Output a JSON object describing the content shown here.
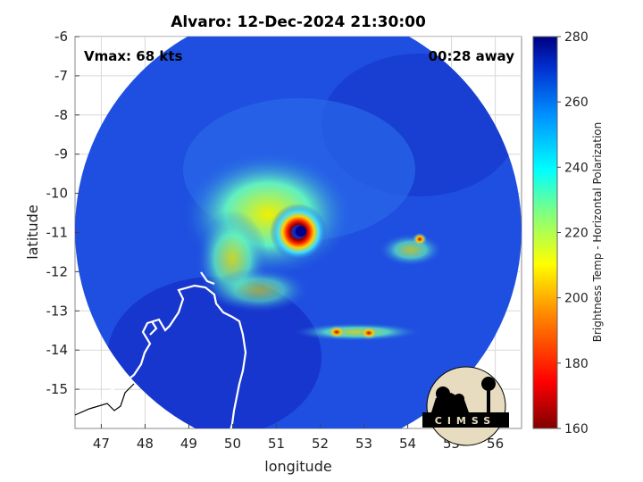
{
  "title": "Alvaro: 12-Dec-2024 21:30:00",
  "vmax_label": "Vmax: 68 kts",
  "time_label": "00:28 away",
  "xlabel": "longitude",
  "ylabel": "latitude",
  "x_ticks": [
    "47",
    "48",
    "49",
    "50",
    "51",
    "52",
    "53",
    "54",
    "55",
    "56"
  ],
  "y_ticks": [
    "-6",
    "-7",
    "-8",
    "-9",
    "-10",
    "-11",
    "-12",
    "-13",
    "-14",
    "-15"
  ],
  "x_range": [
    46.4,
    56.6
  ],
  "y_range": [
    -16.0,
    -6.0
  ],
  "colorbar": {
    "label": "Brightness Temp - Horizontal Polarization",
    "range": [
      160,
      280
    ],
    "ticks": [
      "160",
      "180",
      "200",
      "220",
      "240",
      "260",
      "280"
    ]
  },
  "logo_text": "CIMSS",
  "storm_center": {
    "lon": 51.4,
    "lat": -10.9
  },
  "colors": {
    "background_sea": "#1a3fd6",
    "cold_core": "#8b0000",
    "coast": "#ffffff"
  }
}
